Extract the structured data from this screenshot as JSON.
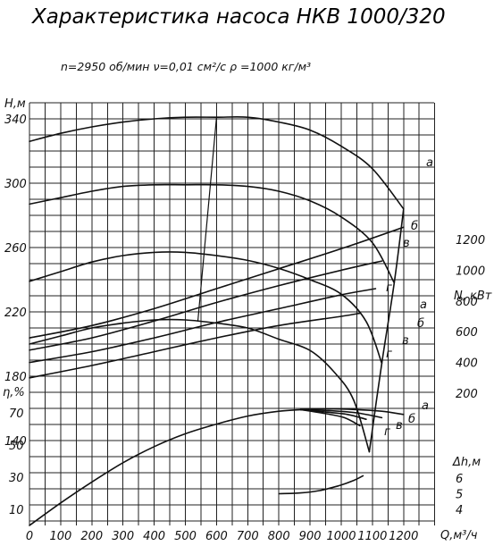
{
  "header": {
    "title": "Характеристика насоса НКВ 1000/320",
    "params": "n=2950 об/мин   ν=0,01 см²/с    ρ =1000 кг/м³"
  },
  "chart_data": {
    "type": "line",
    "x": {
      "label": "Q,м³/ч",
      "ticks": [
        0,
        100,
        200,
        300,
        400,
        500,
        600,
        700,
        800,
        900,
        1000,
        1100,
        1200
      ],
      "range": [
        0,
        1300
      ]
    },
    "head": {
      "label": "H,м",
      "ticks": [
        140,
        180,
        220,
        260,
        300,
        340
      ],
      "series": [
        {
          "name": "а",
          "points": [
            [
              0,
              326
            ],
            [
              100,
              331
            ],
            [
              200,
              335
            ],
            [
              300,
              338
            ],
            [
              400,
              340
            ],
            [
              500,
              341
            ],
            [
              600,
              341
            ],
            [
              700,
              341
            ],
            [
              800,
              338
            ],
            [
              900,
              333
            ],
            [
              1000,
              323
            ],
            [
              1100,
              309
            ],
            [
              1200,
              284
            ]
          ]
        },
        {
          "name": "б",
          "points": [
            [
              0,
              287
            ],
            [
              100,
              291
            ],
            [
              200,
              295
            ],
            [
              300,
              298
            ],
            [
              400,
              299
            ],
            [
              500,
              299
            ],
            [
              600,
              299
            ],
            [
              700,
              298
            ],
            [
              800,
              295
            ],
            [
              900,
              289
            ],
            [
              1000,
              279
            ],
            [
              1100,
              263
            ],
            [
              1170,
              238
            ]
          ]
        },
        {
          "name": "в",
          "points": [
            [
              0,
              239
            ],
            [
              100,
              245
            ],
            [
              200,
              251
            ],
            [
              300,
              255
            ],
            [
              400,
              257
            ],
            [
              500,
              257
            ],
            [
              600,
              255
            ],
            [
              700,
              252
            ],
            [
              800,
              247
            ],
            [
              900,
              240
            ],
            [
              1000,
              231
            ],
            [
              1080,
              214
            ],
            [
              1130,
              188
            ]
          ]
        },
        {
          "name": "г",
          "points": [
            [
              0,
              200
            ],
            [
              100,
              205
            ],
            [
              200,
              210
            ],
            [
              300,
              213
            ],
            [
              400,
              215
            ],
            [
              500,
              215
            ],
            [
              600,
              213
            ],
            [
              700,
              210
            ],
            [
              800,
              203
            ],
            [
              900,
              196
            ],
            [
              980,
              182
            ],
            [
              1040,
              165
            ],
            [
              1090,
              133
            ]
          ]
        }
      ]
    },
    "power": {
      "label": "N, кВт",
      "ticks": [
        200,
        400,
        600,
        800,
        1000,
        1200
      ],
      "series": [
        {
          "name": "а",
          "points": [
            [
              0,
              560
            ],
            [
              200,
              640
            ],
            [
              400,
              750
            ],
            [
              600,
              880
            ],
            [
              800,
              1010
            ],
            [
              1000,
              1140
            ],
            [
              1200,
              1280
            ]
          ]
        },
        {
          "name": "б",
          "points": [
            [
              0,
              480
            ],
            [
              200,
              560
            ],
            [
              400,
              670
            ],
            [
              600,
              790
            ],
            [
              800,
              900
            ],
            [
              1000,
              1000
            ],
            [
              1130,
              1060
            ]
          ]
        },
        {
          "name": "в",
          "points": [
            [
              0,
              400
            ],
            [
              200,
              470
            ],
            [
              400,
              560
            ],
            [
              600,
              660
            ],
            [
              800,
              750
            ],
            [
              1000,
              840
            ],
            [
              1110,
              880
            ]
          ]
        },
        {
          "name": "г",
          "points": [
            [
              0,
              300
            ],
            [
              200,
              380
            ],
            [
              400,
              470
            ],
            [
              600,
              560
            ],
            [
              800,
              640
            ],
            [
              1000,
              700
            ],
            [
              1060,
              720
            ]
          ]
        }
      ]
    },
    "efficiency": {
      "label": "η,%",
      "ticks": [
        10,
        30,
        50,
        70
      ],
      "series": [
        {
          "name": "common",
          "points": [
            [
              0,
              0
            ],
            [
              100,
              14
            ],
            [
              200,
              27
            ],
            [
              300,
              39
            ],
            [
              400,
              49
            ],
            [
              500,
              57
            ],
            [
              600,
              63
            ],
            [
              700,
              68
            ],
            [
              800,
              71
            ],
            [
              870,
              72
            ]
          ]
        },
        {
          "name": "а",
          "points": [
            [
              870,
              72
            ],
            [
              950,
              72.5
            ],
            [
              1050,
              72
            ],
            [
              1130,
              71
            ],
            [
              1200,
              69
            ]
          ]
        },
        {
          "name": "б",
          "points": [
            [
              870,
              72
            ],
            [
              950,
              71.5
            ],
            [
              1050,
              70
            ],
            [
              1130,
              67
            ]
          ]
        },
        {
          "name": "в",
          "points": [
            [
              870,
              72
            ],
            [
              950,
              70.5
            ],
            [
              1020,
              69
            ],
            [
              1080,
              66
            ]
          ]
        },
        {
          "name": "г",
          "points": [
            [
              870,
              72
            ],
            [
              950,
              69.5
            ],
            [
              1010,
              67
            ],
            [
              1060,
              62
            ]
          ]
        }
      ]
    },
    "npsh": {
      "label": "Δh,м",
      "ticks": [
        4,
        5,
        6
      ],
      "series": [
        {
          "name": "Δh",
          "points": [
            [
              800,
              5
            ],
            [
              870,
              5.05
            ],
            [
              930,
              5.2
            ],
            [
              990,
              5.5
            ],
            [
              1040,
              5.85
            ],
            [
              1070,
              6.15
            ]
          ]
        }
      ]
    },
    "operating_boundary": {
      "points": [
        [
          540,
          214
        ],
        [
          600,
          341
        ]
      ]
    },
    "curve_labels": [
      "а",
      "б",
      "в",
      "г"
    ],
    "grid": true
  }
}
